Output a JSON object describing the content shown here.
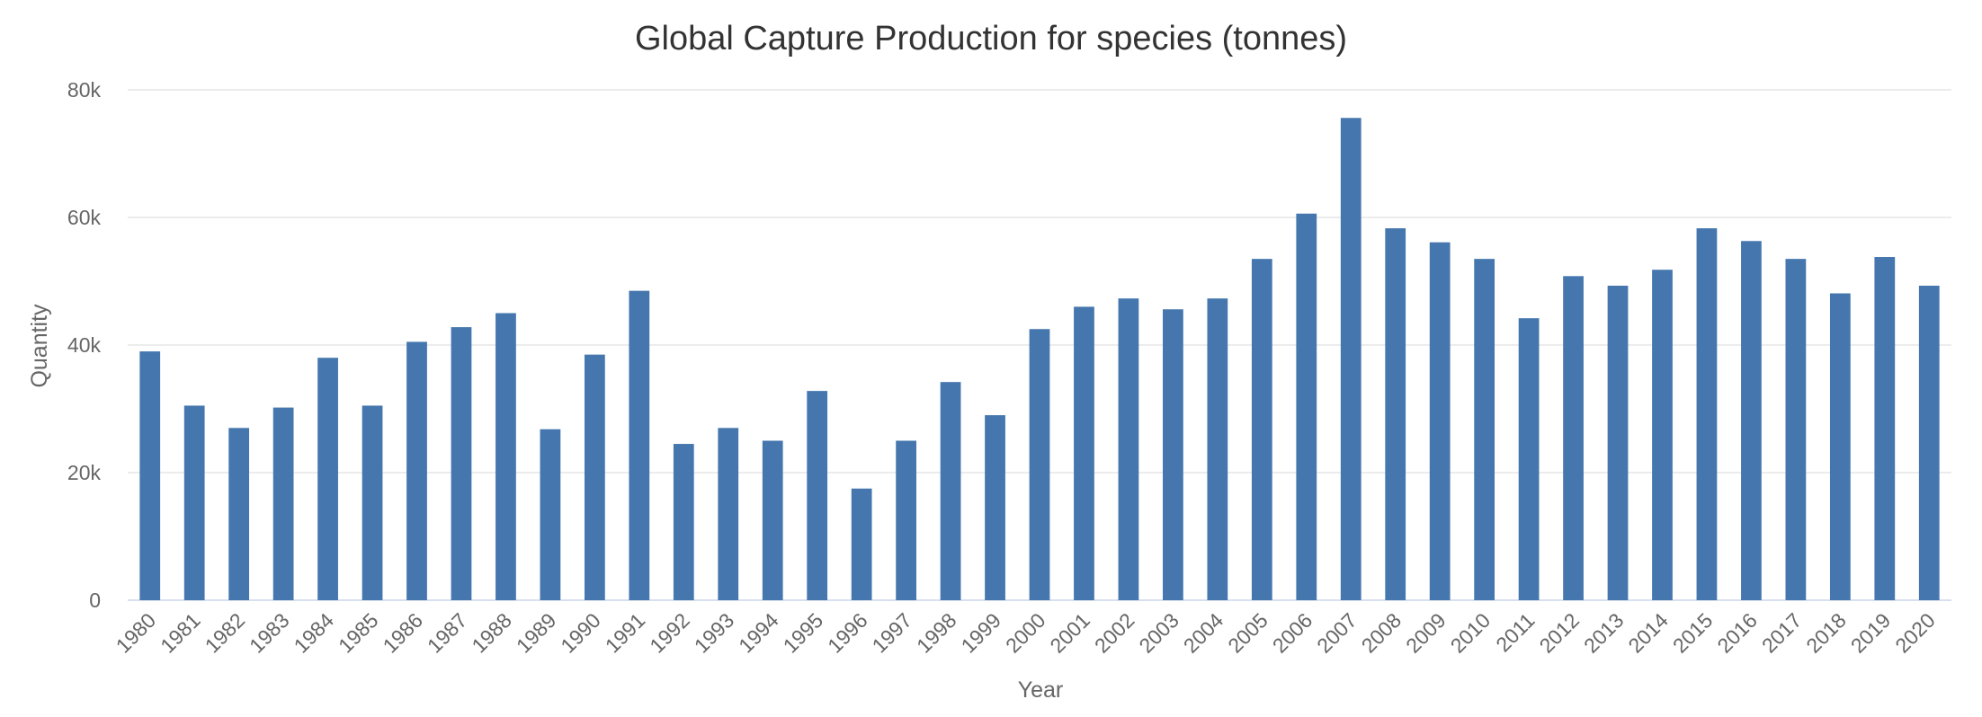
{
  "chart_data": {
    "type": "bar",
    "title": "Global Capture Production for species (tonnes)",
    "xlabel": "Year",
    "ylabel": "Quantity",
    "ylim": [
      0,
      80000
    ],
    "yticks": [
      0,
      20000,
      40000,
      60000,
      80000
    ],
    "ytick_labels": [
      "0",
      "20k",
      "40k",
      "60k",
      "80k"
    ],
    "grid": true,
    "bar_color": "#4577ae",
    "categories": [
      "1980",
      "1981",
      "1982",
      "1983",
      "1984",
      "1985",
      "1986",
      "1987",
      "1988",
      "1989",
      "1990",
      "1991",
      "1992",
      "1993",
      "1994",
      "1995",
      "1996",
      "1997",
      "1998",
      "1999",
      "2000",
      "2001",
      "2002",
      "2003",
      "2004",
      "2005",
      "2006",
      "2007",
      "2008",
      "2009",
      "2010",
      "2011",
      "2012",
      "2013",
      "2014",
      "2015",
      "2016",
      "2017",
      "2018",
      "2019",
      "2020"
    ],
    "values": [
      39000,
      30500,
      27000,
      30200,
      38000,
      30500,
      40500,
      42800,
      45000,
      26800,
      38500,
      48500,
      24500,
      27000,
      25000,
      32800,
      17500,
      25000,
      34200,
      29000,
      42500,
      46000,
      47300,
      45600,
      47300,
      53500,
      60600,
      75600,
      58300,
      56100,
      53500,
      44200,
      50800,
      49300,
      51800,
      58300,
      56300,
      53500,
      48100,
      53800,
      49300
    ]
  }
}
